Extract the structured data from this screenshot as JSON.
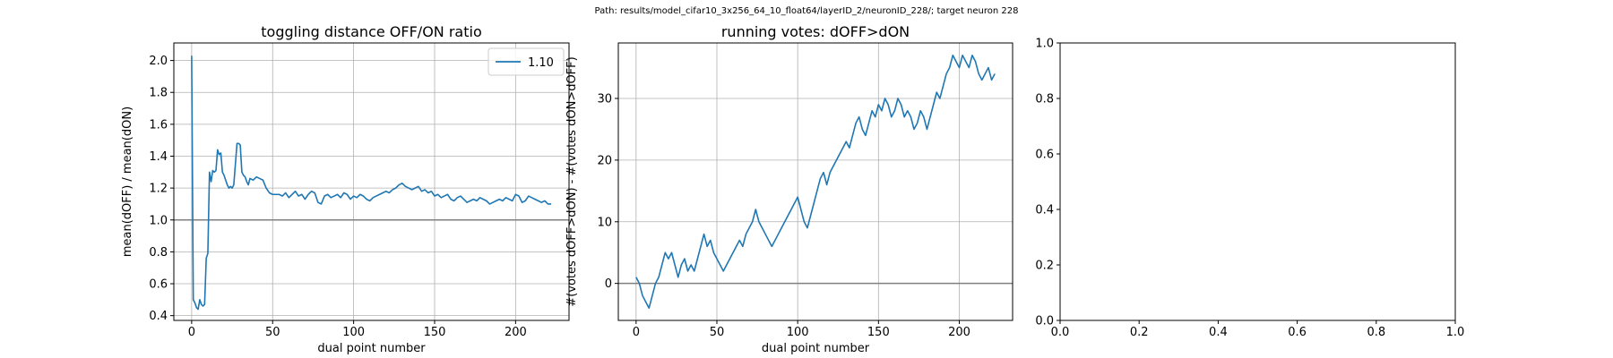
{
  "suptitle": "Path: results/model_cifar10_3x256_64_10_float64/layerID_2/neuronID_228/; target neuron 228",
  "colors": {
    "series": "#1f77b4",
    "grid": "#b0b0b0",
    "refline": "#808080",
    "axes": "#000000"
  },
  "chart_data": [
    {
      "type": "line",
      "title": "toggling distance OFF/ON ratio",
      "xlabel": "dual point number",
      "ylabel": "mean(dOFF) / mean(dON)",
      "xlim": [
        -11,
        233
      ],
      "ylim": [
        0.37,
        2.11
      ],
      "xticks": [
        0,
        50,
        100,
        150,
        200
      ],
      "xtick_labels": [
        "0",
        "50",
        "100",
        "150",
        "200"
      ],
      "yticks": [
        0.4,
        0.6,
        0.8,
        1.0,
        1.2,
        1.4,
        1.6,
        1.8,
        2.0
      ],
      "ytick_labels": [
        "0.4",
        "0.6",
        "0.8",
        "1.0",
        "1.2",
        "1.4",
        "1.6",
        "1.8",
        "2.0"
      ],
      "grid": true,
      "reference_line_y": 1.0,
      "legend": {
        "position": "top-right",
        "entries": [
          "1.10"
        ]
      },
      "series": [
        {
          "name": "1.10",
          "x": [
            0,
            1,
            2,
            3,
            4,
            5,
            6,
            7,
            8,
            9,
            10,
            11,
            12,
            13,
            14,
            15,
            16,
            17,
            18,
            19,
            20,
            21,
            22,
            23,
            24,
            25,
            26,
            27,
            28,
            29,
            30,
            31,
            32,
            33,
            34,
            35,
            36,
            38,
            40,
            42,
            44,
            46,
            48,
            50,
            52,
            54,
            56,
            58,
            60,
            62,
            64,
            66,
            68,
            70,
            72,
            74,
            76,
            78,
            80,
            82,
            84,
            86,
            88,
            90,
            92,
            94,
            96,
            98,
            100,
            102,
            104,
            106,
            108,
            110,
            112,
            114,
            116,
            118,
            120,
            122,
            124,
            126,
            128,
            130,
            132,
            134,
            136,
            138,
            140,
            142,
            144,
            146,
            148,
            150,
            152,
            154,
            156,
            158,
            160,
            162,
            164,
            166,
            168,
            170,
            172,
            174,
            176,
            178,
            180,
            182,
            184,
            186,
            188,
            190,
            192,
            194,
            196,
            198,
            200,
            202,
            204,
            206,
            208,
            210,
            212,
            214,
            216,
            218,
            220,
            222
          ],
          "y": [
            2.03,
            0.5,
            0.48,
            0.45,
            0.44,
            0.5,
            0.47,
            0.46,
            0.47,
            0.76,
            0.79,
            1.3,
            1.24,
            1.31,
            1.3,
            1.31,
            1.44,
            1.41,
            1.42,
            1.3,
            1.28,
            1.25,
            1.22,
            1.2,
            1.21,
            1.2,
            1.22,
            1.35,
            1.48,
            1.48,
            1.47,
            1.3,
            1.28,
            1.27,
            1.24,
            1.22,
            1.26,
            1.25,
            1.27,
            1.26,
            1.25,
            1.2,
            1.17,
            1.16,
            1.16,
            1.16,
            1.15,
            1.17,
            1.14,
            1.16,
            1.18,
            1.15,
            1.16,
            1.13,
            1.16,
            1.18,
            1.17,
            1.11,
            1.1,
            1.15,
            1.16,
            1.14,
            1.15,
            1.16,
            1.14,
            1.17,
            1.16,
            1.13,
            1.15,
            1.14,
            1.16,
            1.15,
            1.13,
            1.12,
            1.14,
            1.15,
            1.16,
            1.17,
            1.18,
            1.17,
            1.19,
            1.2,
            1.22,
            1.23,
            1.21,
            1.2,
            1.19,
            1.2,
            1.21,
            1.18,
            1.19,
            1.17,
            1.18,
            1.15,
            1.16,
            1.14,
            1.15,
            1.16,
            1.13,
            1.12,
            1.14,
            1.15,
            1.13,
            1.11,
            1.12,
            1.13,
            1.12,
            1.14,
            1.13,
            1.12,
            1.1,
            1.11,
            1.12,
            1.13,
            1.12,
            1.14,
            1.13,
            1.12,
            1.16,
            1.15,
            1.11,
            1.12,
            1.15,
            1.14,
            1.13,
            1.12,
            1.11,
            1.12,
            1.1,
            1.1
          ]
        }
      ]
    },
    {
      "type": "line",
      "title": "running votes: dOFF>dON",
      "xlabel": "dual point number",
      "ylabel": "#(votes dOFF>dON) - #(votes dON>dOFF)",
      "xlim": [
        -11,
        233
      ],
      "ylim": [
        -6,
        39
      ],
      "xticks": [
        0,
        50,
        100,
        150,
        200
      ],
      "xtick_labels": [
        "0",
        "50",
        "100",
        "150",
        "200"
      ],
      "yticks": [
        0,
        10,
        20,
        30
      ],
      "ytick_labels": [
        "0",
        "10",
        "20",
        "30"
      ],
      "grid": true,
      "reference_line_y": 0,
      "series": [
        {
          "x": [
            0,
            2,
            4,
            6,
            8,
            10,
            12,
            14,
            16,
            18,
            20,
            22,
            24,
            26,
            28,
            30,
            32,
            34,
            36,
            38,
            40,
            42,
            44,
            46,
            48,
            50,
            52,
            54,
            56,
            58,
            60,
            62,
            64,
            66,
            68,
            70,
            72,
            74,
            76,
            78,
            80,
            82,
            84,
            86,
            88,
            90,
            92,
            94,
            96,
            98,
            100,
            102,
            104,
            106,
            108,
            110,
            112,
            114,
            116,
            118,
            120,
            122,
            124,
            126,
            128,
            130,
            132,
            134,
            136,
            138,
            140,
            142,
            144,
            146,
            148,
            150,
            152,
            154,
            156,
            158,
            160,
            162,
            164,
            166,
            168,
            170,
            172,
            174,
            176,
            178,
            180,
            182,
            184,
            186,
            188,
            190,
            192,
            194,
            196,
            198,
            200,
            202,
            204,
            206,
            208,
            210,
            212,
            214,
            216,
            218,
            220,
            222
          ],
          "y": [
            1,
            0,
            -2,
            -3,
            -4,
            -2,
            0,
            1,
            3,
            5,
            4,
            5,
            3,
            1,
            3,
            4,
            2,
            3,
            2,
            4,
            6,
            8,
            6,
            7,
            5,
            4,
            3,
            2,
            3,
            4,
            5,
            6,
            7,
            6,
            8,
            9,
            10,
            12,
            10,
            9,
            8,
            7,
            6,
            7,
            8,
            9,
            10,
            11,
            12,
            13,
            14,
            12,
            10,
            9,
            11,
            13,
            15,
            17,
            18,
            16,
            18,
            19,
            20,
            21,
            22,
            23,
            22,
            24,
            26,
            27,
            25,
            24,
            26,
            28,
            27,
            29,
            28,
            30,
            29,
            27,
            28,
            30,
            29,
            27,
            28,
            27,
            25,
            26,
            28,
            27,
            25,
            27,
            29,
            31,
            30,
            32,
            34,
            35,
            37,
            36,
            35,
            37,
            36,
            35,
            37,
            36,
            34,
            33,
            34,
            35,
            33,
            34
          ]
        }
      ]
    },
    {
      "type": "line",
      "title": "",
      "xlabel": "",
      "ylabel": "",
      "xlim": [
        0,
        1
      ],
      "ylim": [
        0,
        1
      ],
      "xticks": [
        0,
        0.2,
        0.4,
        0.6,
        0.8,
        1.0
      ],
      "xtick_labels": [
        "0.0",
        "0.2",
        "0.4",
        "0.6",
        "0.8",
        "1.0"
      ],
      "yticks": [
        0,
        0.2,
        0.4,
        0.6,
        0.8,
        1.0
      ],
      "ytick_labels": [
        "0.0",
        "0.2",
        "0.4",
        "0.6",
        "0.8",
        "1.0"
      ],
      "grid": false,
      "series": []
    }
  ]
}
